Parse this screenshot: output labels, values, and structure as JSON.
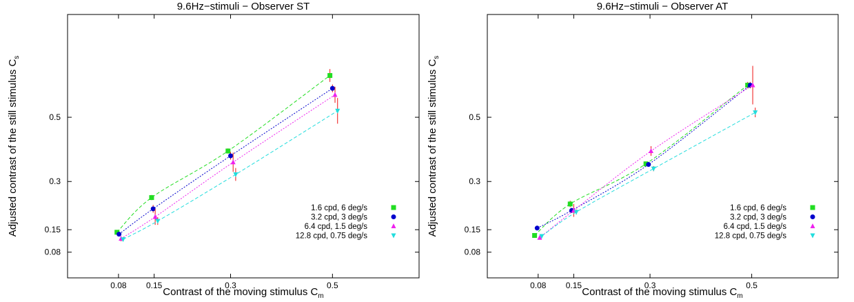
{
  "chart_data": [
    {
      "type": "scatter",
      "title": "9.6Hz−stimuli − Observer ST",
      "xlabel": "Contrast of the moving stimulus C",
      "xlabel_sub": "m",
      "ylabel": "Adjusted contrast of the still stimulus C",
      "ylabel_sub": "s",
      "xlim": [
        -0.02,
        0.67
      ],
      "ylim": [
        0.0,
        0.82
      ],
      "xticks": [
        "0.08",
        "0.15",
        "0.3",
        "0.5"
      ],
      "yticks": [
        "0.08",
        "0.15",
        "0.3",
        "0.5"
      ],
      "grid": false,
      "legend_position": "bottom-right",
      "series": [
        {
          "name": "1.6 cpd, 6 deg/s",
          "color": "#22dd22",
          "marker": "square",
          "line": "dashed",
          "x": [
            0.077,
            0.145,
            0.295,
            0.495
          ],
          "y": [
            0.142,
            0.25,
            0.395,
            0.63
          ],
          "err": [
            0.004,
            0.008,
            0.008,
            0.02
          ]
        },
        {
          "name": "3.2 cpd, 3 deg/s",
          "color": "#0000cc",
          "marker": "circle",
          "line": "dotted",
          "x": [
            0.081,
            0.148,
            0.3,
            0.5
          ],
          "y": [
            0.136,
            0.215,
            0.38,
            0.59
          ],
          "err": [
            0.006,
            0.012,
            0.012,
            0.012
          ]
        },
        {
          "name": "6.4 cpd, 1.5 deg/s",
          "color": "#ee22ee",
          "marker": "triangle-up",
          "line": "dotted",
          "x": [
            0.085,
            0.152,
            0.305,
            0.505
          ],
          "y": [
            0.122,
            0.19,
            0.36,
            0.57
          ],
          "err": [
            0.008,
            0.025,
            0.03,
            0.025
          ]
        },
        {
          "name": "12.8 cpd, 0.75 deg/s",
          "color": "#22dddd",
          "marker": "triangle-down",
          "line": "dashed",
          "x": [
            0.089,
            0.157,
            0.31,
            0.51
          ],
          "y": [
            0.12,
            0.177,
            0.322,
            0.52
          ],
          "err": [
            0.006,
            0.012,
            0.02,
            0.04
          ]
        }
      ]
    },
    {
      "type": "scatter",
      "title": "9.6Hz−stimuli − Observer AT",
      "xlabel": "Contrast of the moving stimulus C",
      "xlabel_sub": "m",
      "ylabel": "Adjusted contrast of the still stimulus C",
      "ylabel_sub": "s",
      "xlim": [
        -0.02,
        0.67
      ],
      "ylim": [
        0.0,
        0.82
      ],
      "xticks": [
        "0.08",
        "0.15",
        "0.3",
        "0.5"
      ],
      "yticks": [
        "0.08",
        "0.15",
        "0.3",
        "0.5"
      ],
      "grid": false,
      "legend_position": "bottom-right",
      "series": [
        {
          "name": "1.6 cpd, 6 deg/s",
          "color": "#22dd22",
          "marker": "square",
          "line": "dashed",
          "x": [
            0.073,
            0.143,
            0.292,
            0.492
          ],
          "y": [
            0.132,
            0.23,
            0.355,
            0.6
          ],
          "err": [
            0.004,
            0.01,
            0.006,
            0.01
          ]
        },
        {
          "name": "3.2 cpd, 3 deg/s",
          "color": "#0000cc",
          "marker": "circle",
          "line": "dotted",
          "x": [
            0.078,
            0.146,
            0.297,
            0.497
          ],
          "y": [
            0.155,
            0.21,
            0.353,
            0.6
          ],
          "err": [
            0.004,
            0.008,
            0.006,
            0.01
          ]
        },
        {
          "name": "6.4 cpd, 1.5 deg/s",
          "color": "#ee22ee",
          "marker": "triangle-up",
          "line": "dotted",
          "x": [
            0.083,
            0.15,
            0.302,
            0.502
          ],
          "y": [
            0.125,
            0.21,
            0.395,
            0.6
          ],
          "err": [
            0.005,
            0.02,
            0.015,
            0.06
          ]
        },
        {
          "name": "12.8 cpd, 0.75 deg/s",
          "color": "#22dddd",
          "marker": "triangle-down",
          "line": "dashed",
          "x": [
            0.087,
            0.155,
            0.307,
            0.507
          ],
          "y": [
            0.13,
            0.205,
            0.34,
            0.515
          ],
          "err": [
            0.005,
            0.008,
            0.008,
            0.015
          ]
        }
      ]
    }
  ]
}
